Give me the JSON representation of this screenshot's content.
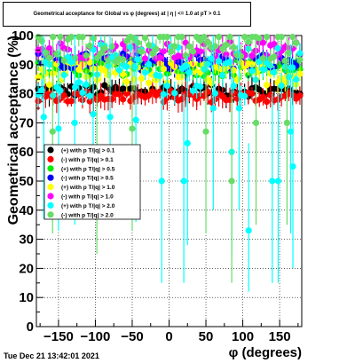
{
  "title": "Geometrical acceptance for Global vs φ (degrees) at |  η | <= 1.0 at pT > 0.1",
  "timestamp": "Tue Dec 21 13:42:01 2021",
  "chart_data": {
    "type": "scatter",
    "xlabel": "φ (degrees)",
    "ylabel": "Geometrical acceptance (%)",
    "xlim": [
      -180,
      180
    ],
    "ylim": [
      0,
      100
    ],
    "xticks": [
      -150,
      -100,
      -50,
      0,
      50,
      100,
      150
    ],
    "xtick_labels": [
      "−150",
      "−100",
      "−50",
      "0",
      "50",
      "100",
      "150"
    ],
    "yticks": [
      0,
      10,
      20,
      30,
      40,
      50,
      60,
      70,
      80,
      90,
      100
    ],
    "ytick_labels": [
      "0",
      "10",
      "20",
      "30",
      "40",
      "50",
      "60",
      "70",
      "80",
      "90",
      "100"
    ],
    "grid": true,
    "legend_position": "left-middle",
    "series": [
      {
        "name": "(+) with p T/|q| > 0.1",
        "color": "#000000",
        "baseline": 81,
        "spread": 2
      },
      {
        "name": "(-) with p T/|q| > 0.1",
        "color": "#ff0000",
        "baseline": 79,
        "spread": 2
      },
      {
        "name": "(+) with p T/|q| > 0.5",
        "color": "#00ee00",
        "baseline": 89,
        "spread": 3
      },
      {
        "name": "(-) with p T/|q| > 0.5",
        "color": "#0000ff",
        "baseline": 91,
        "spread": 3
      },
      {
        "name": "(+) with p T/|q| > 1.0",
        "color": "#ffff00",
        "baseline": 87,
        "spread": 4
      },
      {
        "name": "(-) with p T/|q| > 1.0",
        "color": "#ff00ff",
        "baseline": 95,
        "spread": 3
      },
      {
        "name": "(+) with p T/|q| > 2.0",
        "color": "#00ffff",
        "baseline": 88,
        "spread": 9
      },
      {
        "name": "(-) with p T/|q| > 2.0",
        "color": "#66dd66",
        "baseline": 97,
        "spread": 6
      }
    ],
    "outliers": [
      {
        "series": 6,
        "x": -170,
        "y": 72
      },
      {
        "series": 6,
        "x": -150,
        "y": 68
      },
      {
        "series": 6,
        "x": -128,
        "y": 70
      },
      {
        "series": 6,
        "x": -103,
        "y": 73
      },
      {
        "series": 6,
        "x": -80,
        "y": 72
      },
      {
        "series": 6,
        "x": -45,
        "y": 71
      },
      {
        "series": 6,
        "x": -10,
        "y": 50
      },
      {
        "series": 6,
        "x": 20,
        "y": 50
      },
      {
        "series": 6,
        "x": 25,
        "y": 63
      },
      {
        "series": 6,
        "x": 60,
        "y": 75
      },
      {
        "series": 6,
        "x": 85,
        "y": 60
      },
      {
        "series": 6,
        "x": 95,
        "y": 75
      },
      {
        "series": 6,
        "x": 108,
        "y": 33
      },
      {
        "series": 6,
        "x": 140,
        "y": 50
      },
      {
        "series": 6,
        "x": 148,
        "y": 50
      },
      {
        "series": 6,
        "x": 165,
        "y": 67
      },
      {
        "series": 6,
        "x": 168,
        "y": 55
      },
      {
        "series": 7,
        "x": -158,
        "y": 67
      },
      {
        "series": 7,
        "x": -98,
        "y": 60
      },
      {
        "series": 7,
        "x": -50,
        "y": 68
      },
      {
        "series": 7,
        "x": 50,
        "y": 67
      },
      {
        "series": 7,
        "x": 85,
        "y": 50
      },
      {
        "series": 7,
        "x": 118,
        "y": 70
      },
      {
        "series": 7,
        "x": 160,
        "y": 70
      }
    ]
  }
}
